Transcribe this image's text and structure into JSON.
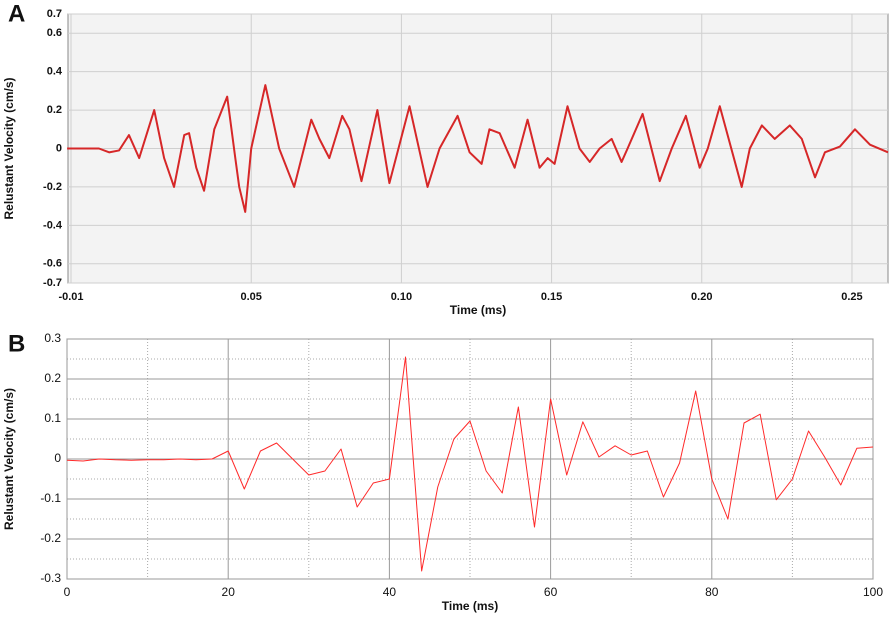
{
  "chart_data": [
    {
      "type": "line",
      "panel_label": "A",
      "xlabel": "Time (ms)",
      "ylabel": "Relustant Velocity (cm/s)",
      "color": "#d62728",
      "grid": true,
      "xlim": [
        -0.011,
        0.262
      ],
      "ylim": [
        -0.7,
        0.7
      ],
      "xticks": [
        -0.01,
        0.05,
        {
          "value": 0.1,
          "label": "0.10"
        },
        0.15,
        {
          "value": 0.2,
          "label": "0.20"
        },
        0.25
      ],
      "yticks": [
        0.7,
        0.6,
        0.4,
        0.2,
        0,
        -0.2,
        -0.4,
        -0.6,
        -0.7
      ],
      "x": [
        -0.0113,
        -0.0007,
        0.0027,
        0.006,
        0.0093,
        0.0127,
        0.0177,
        0.021,
        0.0243,
        0.0277,
        0.0293,
        0.0317,
        0.0343,
        0.0377,
        0.042,
        0.0447,
        0.046,
        0.048,
        0.05,
        0.0547,
        0.0593,
        0.0643,
        0.07,
        0.0727,
        0.076,
        0.0803,
        0.0827,
        0.0867,
        0.092,
        0.096,
        0.1027,
        0.1087,
        0.1127,
        0.1187,
        0.1227,
        0.1267,
        0.1293,
        0.1327,
        0.1377,
        0.142,
        0.146,
        0.1487,
        0.151,
        0.1553,
        0.1593,
        0.1627,
        0.166,
        0.17,
        0.1733,
        0.1753,
        0.1803,
        0.186,
        0.19,
        0.1947,
        0.1993,
        0.202,
        0.206,
        0.2133,
        0.216,
        0.22,
        0.2243,
        0.2293,
        0.2333,
        0.2377,
        0.241,
        0.246,
        0.251,
        0.256,
        0.262
      ],
      "values": [
        0,
        0,
        -0.02,
        -0.01,
        0.07,
        -0.05,
        0.2,
        -0.05,
        -0.2,
        0.07,
        0.08,
        -0.1,
        -0.22,
        0.1,
        0.27,
        -0.05,
        -0.2,
        -0.33,
        0,
        0.33,
        0,
        -0.2,
        0.15,
        0.05,
        -0.05,
        0.17,
        0.1,
        -0.17,
        0.2,
        -0.18,
        0.22,
        -0.2,
        0,
        0.17,
        -0.02,
        -0.08,
        0.1,
        0.08,
        -0.1,
        0.15,
        -0.1,
        -0.05,
        -0.08,
        0.22,
        0,
        -0.07,
        0,
        0.05,
        -0.07,
        0,
        0.18,
        -0.17,
        0,
        0.17,
        -0.1,
        0,
        0.22,
        -0.2,
        0,
        0.12,
        0.05,
        0.12,
        0.05,
        -0.15,
        -0.02,
        0.01,
        0.1,
        0.02,
        -0.02
      ]
    },
    {
      "type": "line",
      "panel_label": "B",
      "xlabel": "Time (ms)",
      "ylabel": "Relustant Velocity (cm/s)",
      "color": "#ff2a2a",
      "grid": true,
      "xlim": [
        0,
        100
      ],
      "ylim": [
        -0.3,
        0.3
      ],
      "xticks": [
        0,
        20,
        40,
        60,
        80,
        100
      ],
      "yticks": [
        0.3,
        0.2,
        0.1,
        0,
        -0.1,
        -0.2,
        -0.3
      ],
      "xminor": [
        10,
        30,
        50,
        70,
        90
      ],
      "yminor": [
        0.25,
        0.15,
        0.05,
        -0.05,
        -0.15,
        -0.25
      ],
      "x": [
        0,
        2,
        4,
        6,
        8,
        10,
        12,
        14,
        16,
        18,
        20,
        22,
        24,
        26,
        28,
        30,
        32,
        34,
        36,
        38,
        40,
        42,
        44,
        46,
        48,
        50,
        52,
        54,
        56,
        58,
        60,
        62,
        64,
        66,
        68,
        70,
        72,
        74,
        76,
        78,
        80,
        82,
        84,
        86,
        88,
        90,
        92,
        94,
        96,
        98,
        100
      ],
      "values": [
        -0.003,
        -0.005,
        0,
        -0.002,
        -0.003,
        -0.002,
        -0.002,
        0,
        -0.002,
        0,
        0.02,
        -0.075,
        0.02,
        0.04,
        0,
        -0.04,
        -0.03,
        0.025,
        -0.12,
        -0.06,
        -0.05,
        0.255,
        -0.28,
        -0.07,
        0.05,
        0.095,
        -0.03,
        -0.085,
        0.13,
        -0.17,
        0.15,
        -0.04,
        0.093,
        0.005,
        0.033,
        0.01,
        0.02,
        -0.095,
        -0.01,
        0.17,
        -0.05,
        -0.15,
        0.09,
        0.112,
        -0.102,
        -0.05,
        0.07,
        0.005,
        -0.065,
        0.027,
        0.03
      ]
    }
  ]
}
